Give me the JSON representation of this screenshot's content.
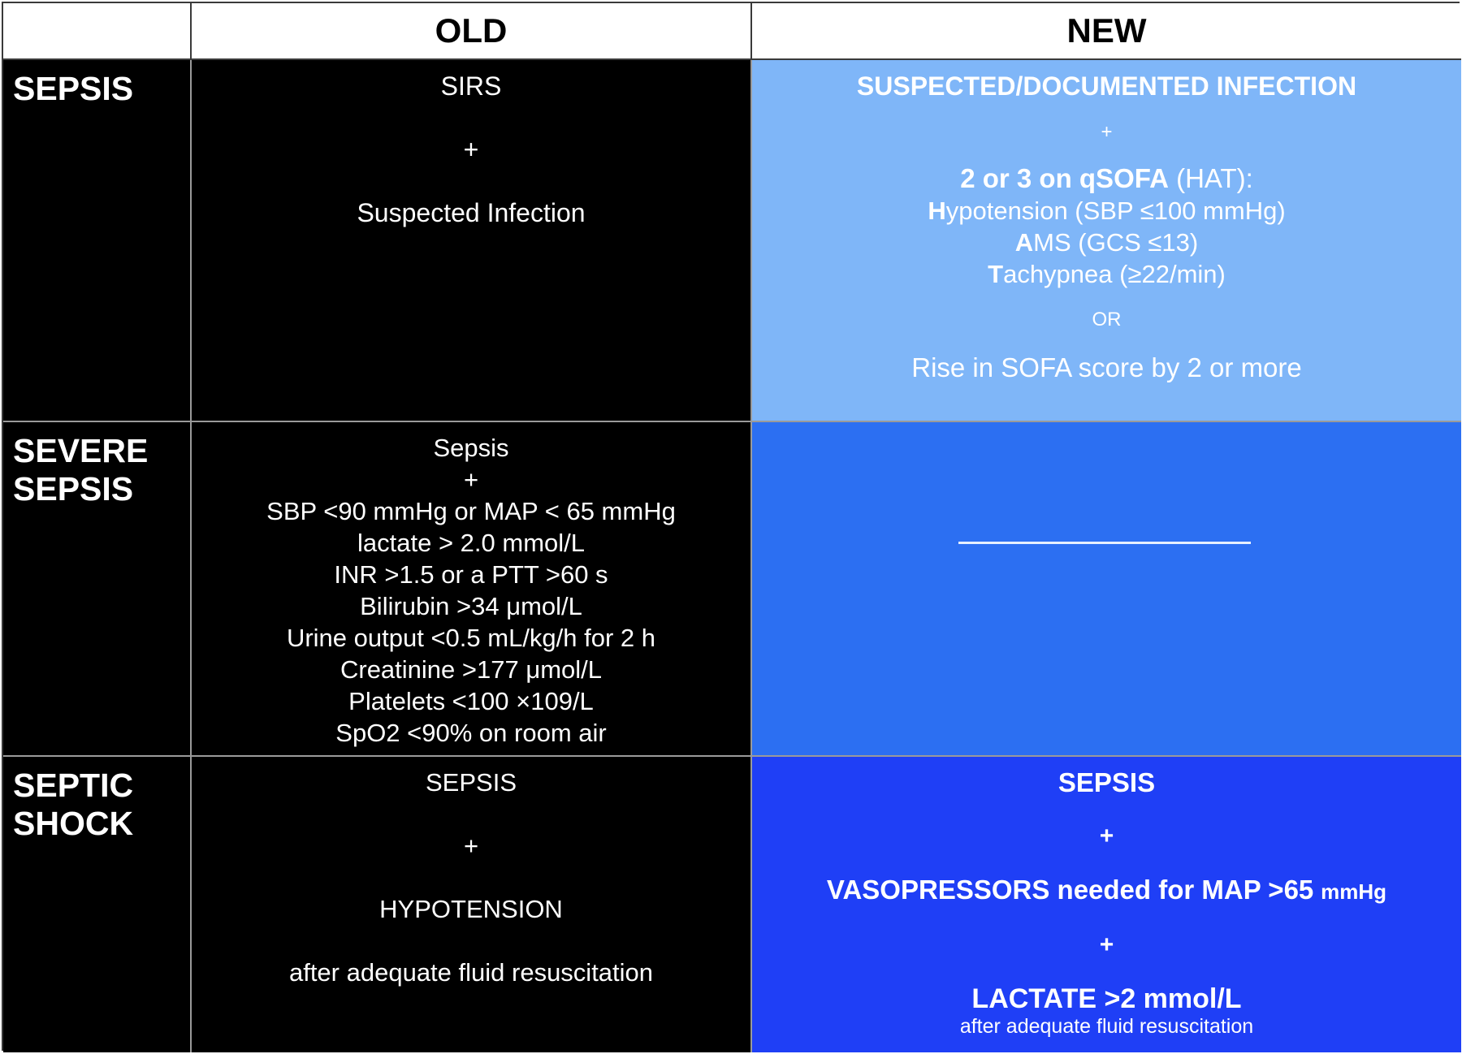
{
  "header": {
    "old": "OLD",
    "new": "NEW"
  },
  "rows": {
    "sepsis": {
      "label": "SEPSIS",
      "old": {
        "line1": "SIRS",
        "plus": "+",
        "line2": "Suspected Infection"
      },
      "new": {
        "title": "SUSPECTED/DOCUMENTED INFECTION",
        "plus": "+",
        "qsofa_bold": "2 or 3 on qSOFA",
        "qsofa_rest": " (HAT):",
        "h_letter": "H",
        "h_rest": "ypotension (SBP ≤100 mmHg)",
        "a_letter": "A",
        "a_rest": "MS (GCS ≤13)",
        "t_letter": "T",
        "t_rest": "achypnea (≥22/min)",
        "or": "OR",
        "rise": "Rise in SOFA score by 2 or more"
      }
    },
    "severe": {
      "label_line1": "SEVERE",
      "label_line2": "SEPSIS",
      "old": {
        "lines": [
          "Sepsis",
          "+",
          "SBP <90 mmHg or MAP < 65 mmHg",
          "lactate > 2.0 mmol/L",
          "INR >1.5 or a PTT >60 s",
          "Bilirubin >34 μmol/L",
          "Urine output <0.5 mL/kg/h for 2 h",
          "Creatinine >177 μmol/L",
          "Platelets <100 ×109/L",
          "SpO2 <90% on room air"
        ]
      }
    },
    "shock": {
      "label_line1": "SEPTIC",
      "label_line2": "SHOCK",
      "old": {
        "line1": "SEPSIS",
        "plus": "+",
        "line2": "HYPOTENSION",
        "line3": "after adequate fluid resuscitation"
      },
      "new": {
        "line1": "SEPSIS",
        "plus1": "+",
        "vaso": "VASOPRESSORS needed for MAP >65",
        "vaso_unit": "mmHg",
        "plus2": "+",
        "lactate": "LACTATE >2 mmol/L",
        "foot": "after adequate fluid resuscitation"
      }
    }
  },
  "colors": {
    "new_row1": "#7fb6f8",
    "new_row2": "#2c6ff2",
    "new_row3": "#1f3ff6",
    "old_bg": "#000000"
  }
}
